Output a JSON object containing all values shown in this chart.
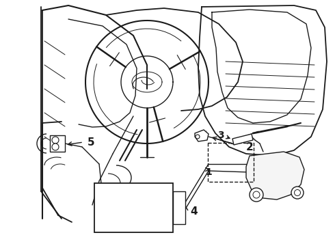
{
  "bg_color": "#ffffff",
  "line_color": "#1a1a1a",
  "lw": 1.0,
  "fig_w": 4.9,
  "fig_h": 3.6,
  "dpi": 100
}
